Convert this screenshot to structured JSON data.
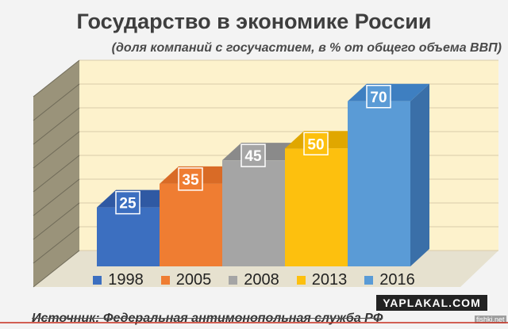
{
  "header": {
    "title": "Государство в экономике России",
    "subtitle": "(доля компаний с госучастием, в % от общего объема ВВП)"
  },
  "chart_data": {
    "type": "bar",
    "categories": [
      "1998",
      "2005",
      "2008",
      "2013",
      "2016"
    ],
    "values": [
      25,
      35,
      45,
      50,
      70
    ],
    "colors": [
      "#3c6fc0",
      "#ef7d32",
      "#a5a5a5",
      "#fdc00e",
      "#5a9bd6"
    ],
    "top_colors": [
      "#2f59a3",
      "#d96b26",
      "#8a8a8a",
      "#e0a700",
      "#3e7fc1"
    ],
    "side_colors": [
      "#2b4f8f",
      "#c45c1c",
      "#7e7e7e",
      "#c99400",
      "#3a6fa8"
    ],
    "title": "Государство в экономике России",
    "subtitle": "(доля компаний с госучастием, в % от общего объема ВВП)",
    "ylim": [
      0,
      80
    ],
    "grid": true,
    "legend_placement": "bottom",
    "style": "3d-columns"
  },
  "legend": [
    {
      "label": "1998",
      "color": "#3c6fc0"
    },
    {
      "label": "2005",
      "color": "#ef7d32"
    },
    {
      "label": "2008",
      "color": "#a5a5a5"
    },
    {
      "label": "2013",
      "color": "#fdc00e"
    },
    {
      "label": "2016",
      "color": "#5a9bd6"
    }
  ],
  "footer": {
    "source": "Источник: Федеральная антимонопольная служба РФ"
  },
  "watermark": {
    "site": "YAPLAKAL.COM",
    "small": "fishki.net"
  }
}
